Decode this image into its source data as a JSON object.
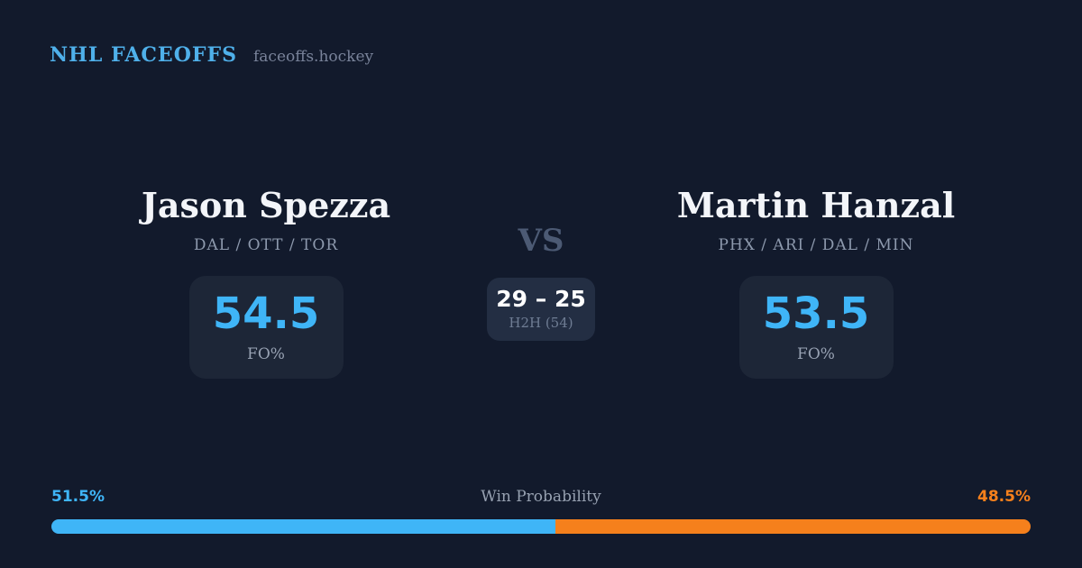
{
  "header": {
    "brand": "NHL FACEOFFS",
    "site": "faceoffs.hockey"
  },
  "matchup": {
    "vs_label": "VS",
    "h2h": {
      "score": "29 – 25",
      "label": "H2H (54)"
    },
    "players": [
      {
        "name": "Jason Spezza",
        "teams": "DAL / OTT / TOR",
        "fo_pct": "54.5",
        "fo_label": "FO%"
      },
      {
        "name": "Martin Hanzal",
        "teams": "PHX / ARI / DAL / MIN",
        "fo_pct": "53.5",
        "fo_label": "FO%"
      }
    ]
  },
  "win_probability": {
    "title": "Win Probability",
    "left_pct_label": "51.5%",
    "right_pct_label": "48.5%",
    "left_value": 51.5,
    "right_value": 48.5,
    "left_color": "#3FB5F7",
    "right_color": "#F5801C"
  },
  "chart_data": {
    "type": "bar",
    "title": "Win Probability",
    "categories": [
      "Jason Spezza",
      "Martin Hanzal"
    ],
    "values": [
      51.5,
      48.5
    ],
    "value_labels": [
      "51.5%",
      "48.5%"
    ],
    "orientation": "horizontal-stacked",
    "colors": [
      "#3FB5F7",
      "#F5801C"
    ],
    "xlim": [
      0,
      100
    ],
    "legend": "none",
    "grid": false
  },
  "colors": {
    "background": "#121A2C",
    "card": "#1D2637",
    "card_h2h": "#232E43",
    "accent_blue": "#3FB5F7",
    "accent_orange": "#F5801C",
    "text_primary": "#F3F5F9",
    "text_muted": "#8D99AD"
  }
}
